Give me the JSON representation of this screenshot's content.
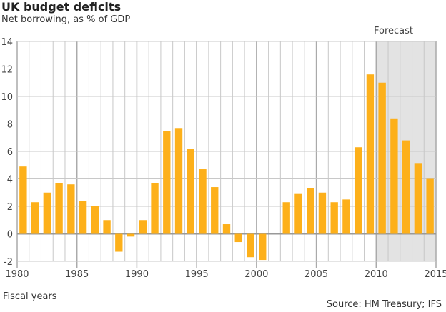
{
  "chart_data": {
    "type": "bar",
    "title": "UK budget deficits",
    "subtitle": "Net borrowing, as % of GDP",
    "xlabel": "Fiscal years",
    "source": "Source: HM Treasury; IFS",
    "annotation": "Forecast",
    "forecast_range": [
      2010,
      2015
    ],
    "categories": [
      1980,
      1981,
      1982,
      1983,
      1984,
      1985,
      1986,
      1987,
      1988,
      1989,
      1990,
      1991,
      1992,
      1993,
      1994,
      1995,
      1996,
      1997,
      1998,
      1999,
      2000,
      2001,
      2002,
      2003,
      2004,
      2005,
      2006,
      2007,
      2008,
      2009,
      2010,
      2011,
      2012,
      2013,
      2014
    ],
    "values": [
      4.9,
      2.3,
      3.0,
      3.7,
      3.6,
      2.4,
      2.0,
      1.0,
      -1.3,
      -0.2,
      1.0,
      3.7,
      7.5,
      7.7,
      6.2,
      4.7,
      3.4,
      0.7,
      -0.6,
      -1.7,
      -1.9,
      0,
      2.3,
      2.9,
      3.3,
      3.0,
      2.3,
      2.5,
      6.3,
      11.6,
      11.0,
      8.4,
      6.8,
      5.1,
      4.0
    ],
    "xlim": [
      1980,
      2015
    ],
    "ylim": [
      -2,
      14
    ],
    "yticks": [
      "-2",
      "0",
      "2",
      "4",
      "6",
      "8",
      "10",
      "12",
      "14"
    ],
    "xticks": [
      "1980",
      "1985",
      "1990",
      "1995",
      "2000",
      "2005",
      "2010",
      "2015"
    ],
    "grid": true,
    "colors": {
      "bar": "#fdb01a",
      "forecast_bg": "#e3e3e3",
      "grid": "#c8c8c8"
    }
  }
}
